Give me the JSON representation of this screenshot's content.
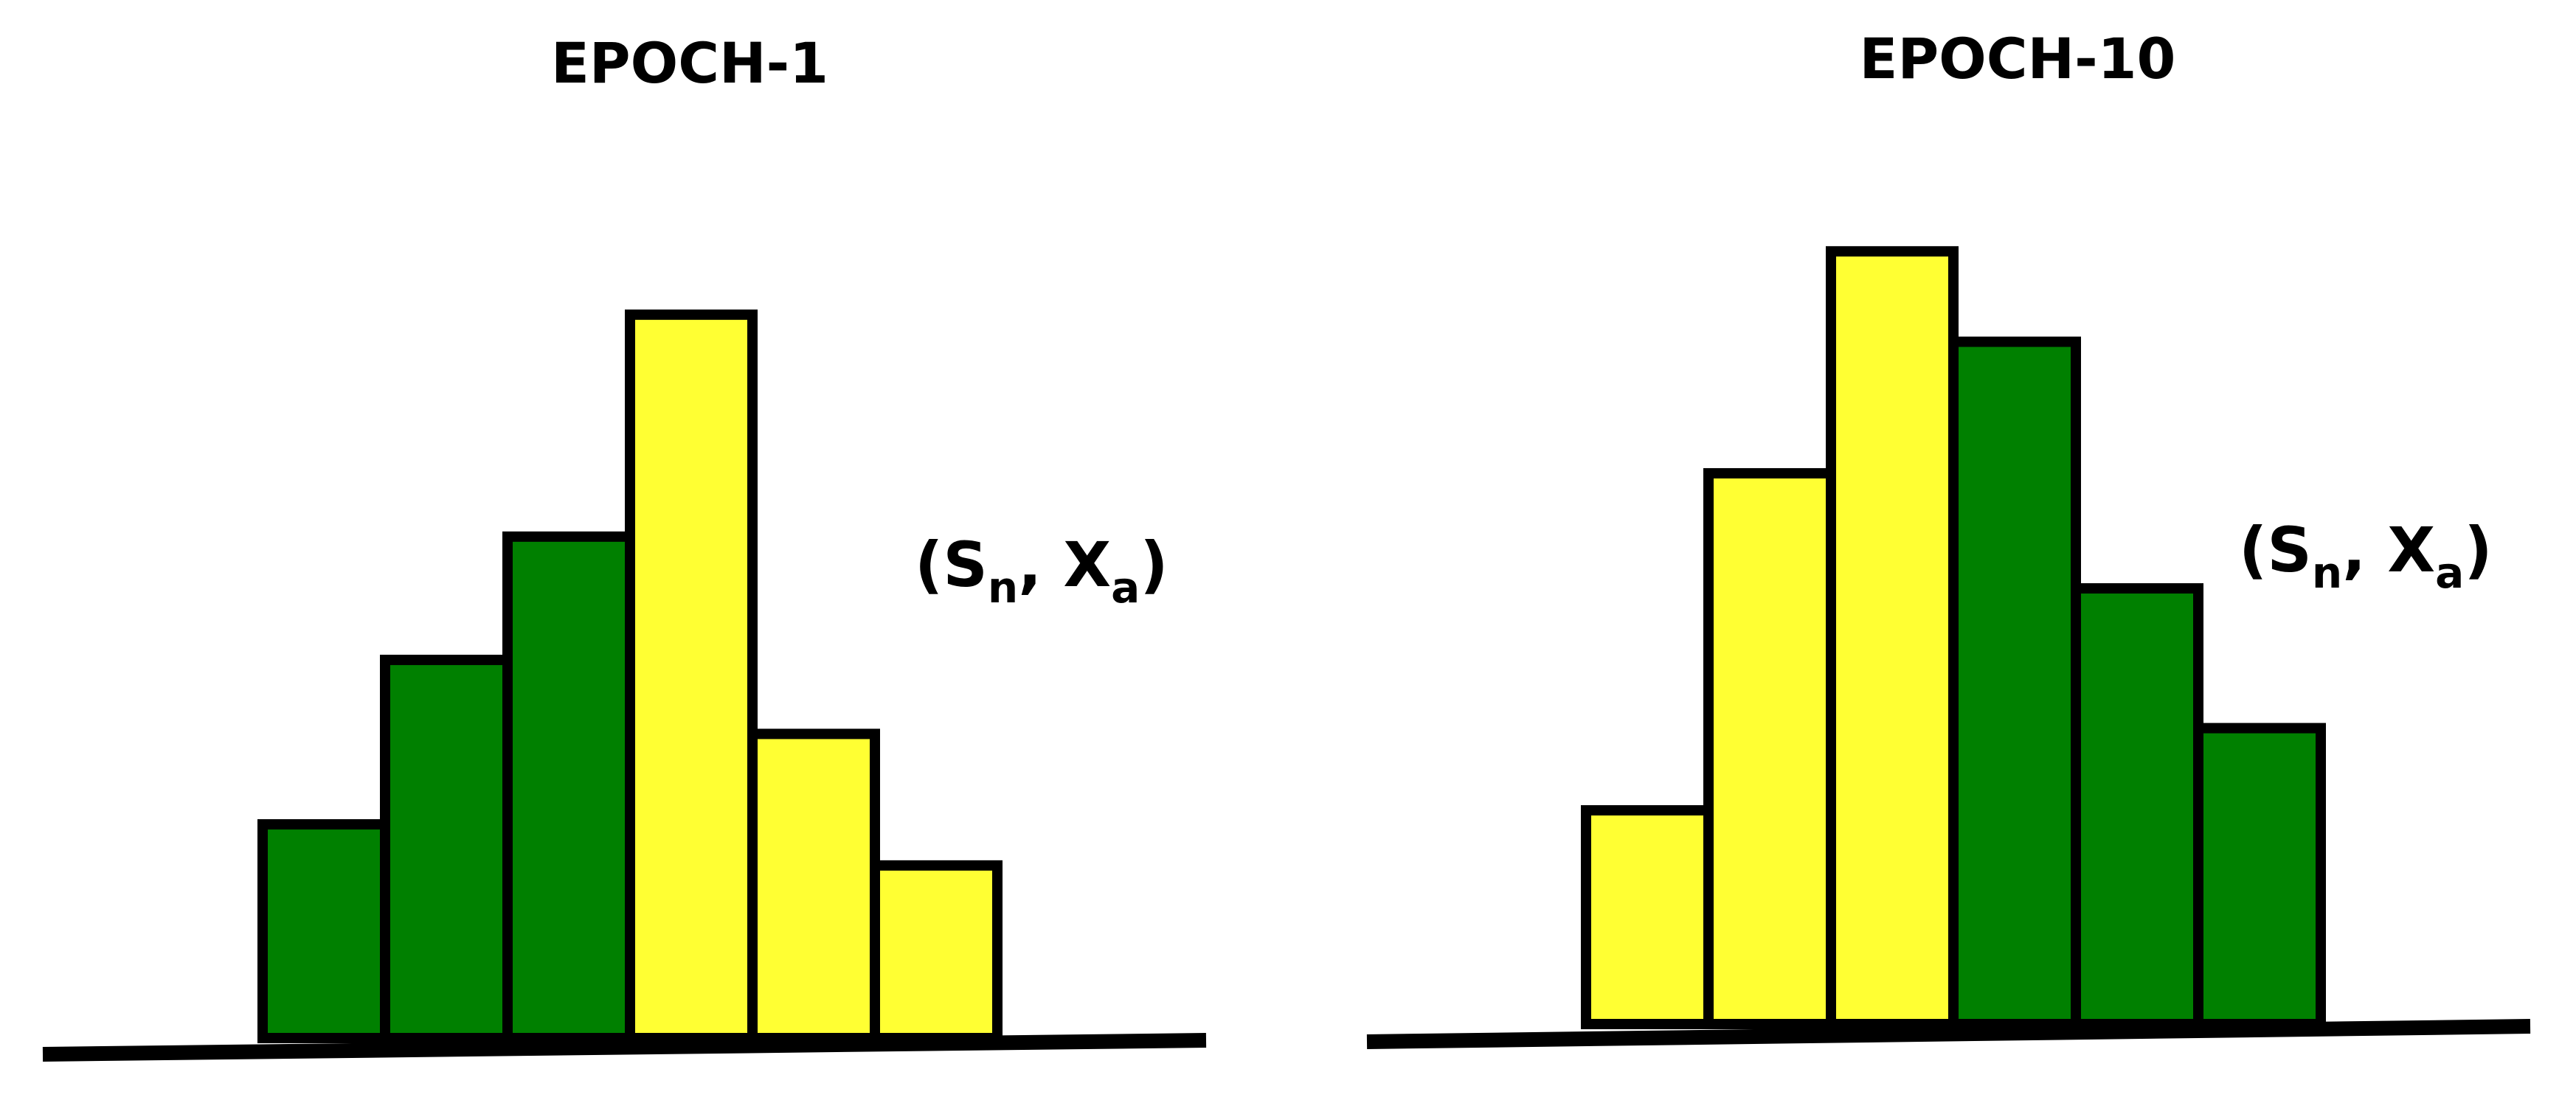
{
  "colors": {
    "green": "#008000",
    "yellow": "#ffff33",
    "outline": "#000000",
    "background": "#ffffff"
  },
  "chart_data": [
    {
      "type": "bar",
      "title": "EPOCH-1",
      "annotation": {
        "open": "(",
        "s": "S",
        "s_sub": "n",
        "sep": ", ",
        "x": "X",
        "x_sub": "a",
        "close": ")"
      },
      "values": [
        13,
        23,
        30.5,
        44,
        18.5,
        10.5
      ],
      "bar_colors": [
        "green",
        "green",
        "green",
        "yellow",
        "yellow",
        "yellow"
      ],
      "ylim": [
        0,
        50
      ],
      "grid": false,
      "legend": false
    },
    {
      "type": "bar",
      "title": "EPOCH-10",
      "annotation": {
        "open": "(",
        "s": "S",
        "s_sub": "n",
        "sep": ", ",
        "x": "X",
        "x_sub": "a",
        "close": ")"
      },
      "values": [
        13,
        33.5,
        47,
        41.5,
        26.5,
        18
      ],
      "bar_colors": [
        "yellow",
        "yellow",
        "yellow",
        "green",
        "green",
        "green"
      ],
      "ylim": [
        0,
        50
      ],
      "grid": false,
      "legend": false
    }
  ]
}
